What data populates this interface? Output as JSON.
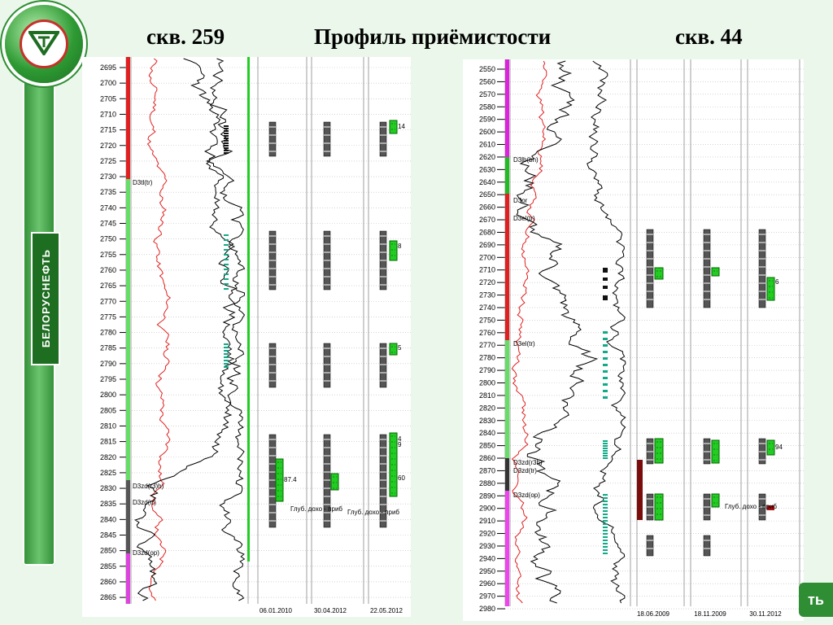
{
  "titles": {
    "left_well": "скв. 259",
    "center": "Профиль приёмистости",
    "right_well": "скв. 44"
  },
  "brand": {
    "text": "БЕЛОРУСНЕФТЬ"
  },
  "corner_text": "ть",
  "left_log": {
    "depths": [
      "2695",
      "2700",
      "2705",
      "2710",
      "2715",
      "2720",
      "2725",
      "2730",
      "2735",
      "2740",
      "2745",
      "2750",
      "2755",
      "2760",
      "2765",
      "2770",
      "2775",
      "2780",
      "2785",
      "2790",
      "2795",
      "2800",
      "2805",
      "2810",
      "2815",
      "2820",
      "2825",
      "2830",
      "2835",
      "2840",
      "2845",
      "2850",
      "2855",
      "2860",
      "2865"
    ],
    "formations": [
      "D3tl(tr)",
      "D3zd(r3)h)",
      "D3zd(tr)",
      "D3zd(op)"
    ],
    "dates": [
      "06.01.2010",
      "30.04.2012",
      "22.05.2012"
    ],
    "labels": [
      "14",
      "8",
      "5",
      "4",
      "9",
      "60",
      "87.4",
      "Глуб. дохо - приб"
    ],
    "colors": {
      "uptake": "#22cc22",
      "perf": "#111111",
      "red_curve": "#e02020",
      "black_curve": "#000000"
    }
  },
  "right_log": {
    "depths": [
      "2550",
      "2560",
      "2570",
      "2580",
      "2590",
      "2600",
      "2610",
      "2620",
      "2630",
      "2640",
      "2650",
      "2660",
      "2670",
      "2680",
      "2690",
      "2700",
      "2710",
      "2720",
      "2730",
      "2740",
      "2750",
      "2760",
      "2770",
      "2780",
      "2790",
      "2800",
      "2810",
      "2820",
      "2830",
      "2840",
      "2850",
      "2860",
      "2870",
      "2880",
      "2890",
      "2900",
      "2910",
      "2920",
      "2930",
      "2940",
      "2950",
      "2960",
      "2970",
      "2980"
    ],
    "formations": [
      "D3lb(bn)",
      "D3or",
      "D3el(tr)",
      "D3el(tr)",
      "D3zd(r3h)",
      "D3zd(tr)",
      "D3zd(op)"
    ],
    "dates": [
      "18.06.2009",
      "18.11.2009",
      "30.11.2012"
    ],
    "labels": [
      "6",
      "94",
      "Глуб. дохо - приб"
    ]
  }
}
